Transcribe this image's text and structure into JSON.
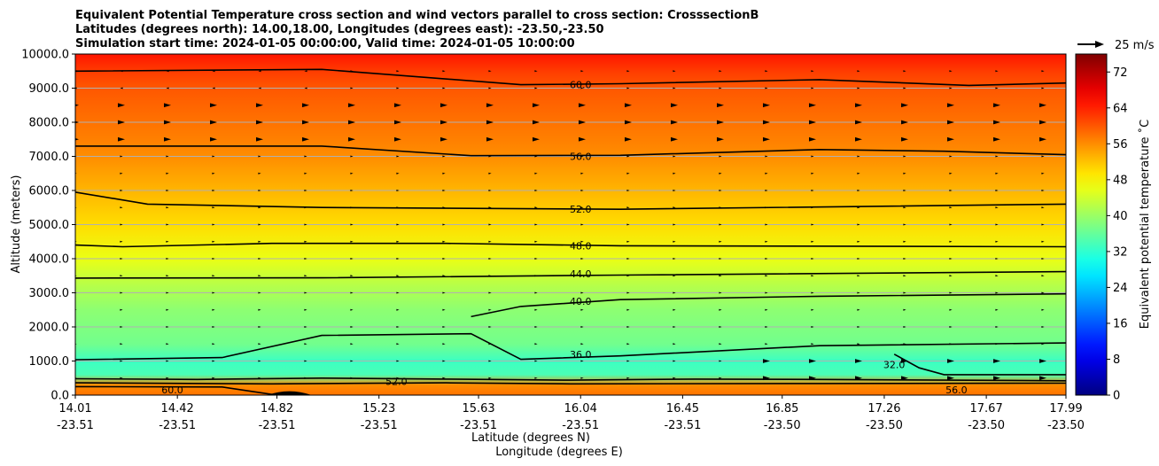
{
  "chart_data": {
    "type": "heatmap",
    "title_lines": [
      "Equivalent Potential Temperature cross section and wind vectors parallel to cross section: CrosssectionB",
      "Latitudes (degrees north): 14.00,18.00, Longitudes (degrees east): -23.50,-23.50",
      "Simulation start time: 2024-01-05 00:00:00, Valid time: 2024-01-05 10:00:00"
    ],
    "xlabel_lat": "Latitude (degrees N)",
    "xlabel_lon": "Longitude (degrees E)",
    "ylabel": "Altitude (meters)",
    "y_ticks": [
      "0.0",
      "1000.0",
      "2000.0",
      "3000.0",
      "4000.0",
      "5000.0",
      "6000.0",
      "7000.0",
      "8000.0",
      "9000.0",
      "10000.0"
    ],
    "ylim": [
      0,
      10000
    ],
    "x_ticks_lat": [
      "14.01",
      "14.42",
      "14.82",
      "15.23",
      "15.63",
      "16.04",
      "16.45",
      "16.85",
      "17.26",
      "17.67",
      "17.99"
    ],
    "x_ticks_lon": [
      "-23.51",
      "-23.51",
      "-23.51",
      "-23.51",
      "-23.51",
      "-23.51",
      "-23.51",
      "-23.50",
      "-23.50",
      "-23.50",
      "-23.50"
    ],
    "xlim": [
      14.01,
      17.99
    ],
    "grid": "horizontal",
    "colorbar_label": "Equivalent potential temperature ˚C",
    "colorbar_ticks": [
      "0",
      "8",
      "16",
      "24",
      "32",
      "40",
      "48",
      "56",
      "64",
      "72"
    ],
    "colorbar_range": [
      0,
      76
    ],
    "quiver_key": "25 m/s",
    "theta_e_profile": [
      {
        "altitude": 0,
        "value": 58
      },
      {
        "altitude": 300,
        "value": 56
      },
      {
        "altitude": 600,
        "value": 34
      },
      {
        "altitude": 1000,
        "value": 33
      },
      {
        "altitude": 1500,
        "value": 37
      },
      {
        "altitude": 2500,
        "value": 39
      },
      {
        "altitude": 3200,
        "value": 42
      },
      {
        "altitude": 4000,
        "value": 46
      },
      {
        "altitude": 5000,
        "value": 50
      },
      {
        "altitude": 6000,
        "value": 53
      },
      {
        "altitude": 7000,
        "value": 56
      },
      {
        "altitude": 8000,
        "value": 58
      },
      {
        "altitude": 9000,
        "value": 60
      },
      {
        "altitude": 9500,
        "value": 62
      },
      {
        "altitude": 10000,
        "value": 65
      }
    ],
    "contours": [
      {
        "label": "60.0",
        "points": [
          [
            14.01,
            9500
          ],
          [
            15.0,
            9550
          ],
          [
            15.8,
            9100
          ],
          [
            16.2,
            9130
          ],
          [
            17.0,
            9250
          ],
          [
            17.6,
            9080
          ],
          [
            17.99,
            9150
          ]
        ],
        "label_at": [
          16.04,
          9100
        ]
      },
      {
        "label": "56.0",
        "points": [
          [
            14.01,
            7300
          ],
          [
            15.0,
            7300
          ],
          [
            15.6,
            7020
          ],
          [
            16.2,
            7030
          ],
          [
            17.0,
            7200
          ],
          [
            17.5,
            7150
          ],
          [
            17.99,
            7050
          ]
        ],
        "label_at": [
          16.04,
          7000
        ]
      },
      {
        "label": "52.0",
        "points": [
          [
            14.01,
            5950
          ],
          [
            14.3,
            5600
          ],
          [
            15.0,
            5500
          ],
          [
            16.2,
            5450
          ],
          [
            17.99,
            5600
          ]
        ],
        "label_at": [
          16.04,
          5450
        ]
      },
      {
        "label": "48.0",
        "points": [
          [
            14.01,
            4400
          ],
          [
            14.2,
            4350
          ],
          [
            14.8,
            4450
          ],
          [
            15.5,
            4450
          ],
          [
            16.2,
            4380
          ],
          [
            17.99,
            4350
          ]
        ],
        "label_at": [
          16.04,
          4380
        ]
      },
      {
        "label": "44.0",
        "points": [
          [
            14.01,
            3430
          ],
          [
            15.0,
            3440
          ],
          [
            16.2,
            3520
          ],
          [
            17.99,
            3620
          ]
        ],
        "label_at": [
          16.04,
          3560
        ]
      },
      {
        "label": "40.0",
        "points": [
          [
            15.6,
            2300
          ],
          [
            15.8,
            2600
          ],
          [
            16.2,
            2800
          ],
          [
            17.0,
            2900
          ],
          [
            17.99,
            2970
          ]
        ],
        "label_at": [
          16.04,
          2750
        ]
      },
      {
        "label": "36.0",
        "points": [
          [
            14.01,
            1040
          ],
          [
            14.6,
            1100
          ],
          [
            15.0,
            1750
          ],
          [
            15.6,
            1800
          ],
          [
            15.8,
            1050
          ],
          [
            16.2,
            1150
          ],
          [
            17.0,
            1450
          ],
          [
            17.99,
            1530
          ]
        ],
        "label_at": [
          16.04,
          1200
        ]
      },
      {
        "label": "32.0",
        "points": [
          [
            17.3,
            1200
          ],
          [
            17.4,
            800
          ],
          [
            17.5,
            600
          ],
          [
            17.99,
            600
          ]
        ],
        "label_at": [
          17.3,
          900
        ]
      },
      {
        "label": "52.0",
        "points": [
          [
            14.01,
            480
          ],
          [
            14.5,
            460
          ],
          [
            15.0,
            500
          ],
          [
            15.5,
            470
          ],
          [
            16.0,
            440
          ],
          [
            16.5,
            470
          ],
          [
            17.0,
            460
          ],
          [
            17.99,
            420
          ]
        ],
        "label_at": [
          15.3,
          400
        ]
      },
      {
        "label": "56.0",
        "points": [
          [
            14.01,
            360
          ],
          [
            14.8,
            330
          ],
          [
            15.5,
            360
          ],
          [
            16.0,
            330
          ],
          [
            17.0,
            340
          ],
          [
            17.99,
            350
          ]
        ],
        "label_at": [
          17.55,
          150
        ]
      },
      {
        "label": "60.0",
        "points": [
          [
            14.01,
            250
          ],
          [
            14.6,
            240
          ],
          [
            14.8,
            20
          ]
        ],
        "label_at": [
          14.4,
          150
        ]
      }
    ],
    "wind_field": {
      "rows_altitude": [
        500,
        1000,
        1500,
        2000,
        2500,
        3000,
        3500,
        4000,
        4500,
        5000,
        5500,
        6000,
        6500,
        7000,
        7500,
        8000,
        8500,
        9000,
        9500
      ],
      "cols_count": 22
    }
  },
  "colors": {
    "background": "#ffffff",
    "grid": "#b0b0b0",
    "contour": "#000000",
    "terrain": "#000000"
  }
}
